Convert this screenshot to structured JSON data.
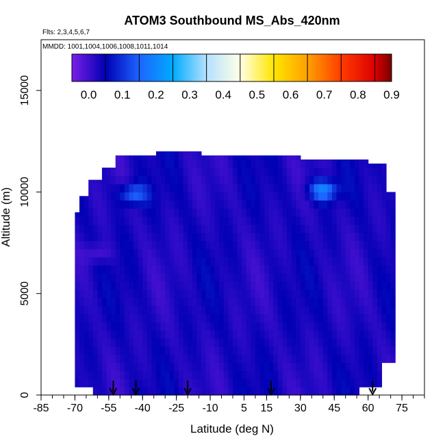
{
  "chart_data": {
    "type": "heatmap",
    "title": "ATOM3 Southbound MS_Abs_420nm",
    "flights_note": "Flts: 2,3,4,5,6,7",
    "dates_note": "MMDD: 1001,1004,1006,1008,1011,1014",
    "xlabel": "Latitude (deg N)",
    "ylabel": "Altitude (m)",
    "xlim": [
      -85,
      85
    ],
    "ylim": [
      0,
      17500
    ],
    "x_ticks": [
      -85,
      -70,
      -55,
      -40,
      -25,
      -10,
      5,
      15,
      30,
      45,
      60,
      75
    ],
    "x_tick_labels": [
      "-85",
      "-70",
      "-55",
      "-40",
      "-25",
      "-10",
      "5",
      "15",
      "30",
      "45",
      "60",
      "75"
    ],
    "y_ticks": [
      0,
      5000,
      10000,
      15000
    ],
    "y_tick_labels": [
      "0",
      "5000",
      "10000",
      "15000"
    ],
    "colorbar": {
      "range": [
        -0.05,
        0.9
      ],
      "ticks": [
        0.0,
        0.1,
        0.2,
        0.3,
        0.4,
        0.5,
        0.6,
        0.7,
        0.8,
        0.9
      ],
      "tick_labels": [
        "0.0",
        "0.1",
        "0.2",
        "0.3",
        "0.4",
        "0.5",
        "0.6",
        "0.7",
        "0.8",
        "0.9"
      ],
      "colors": [
        "#7a1ee6",
        "#0000b4",
        "#1e64ff",
        "#00aaff",
        "#b4e1ff",
        "#ffffe6",
        "#ffe600",
        "#ffa000",
        "#ff3c00",
        "#dc0000",
        "#780000"
      ],
      "color_stops": [
        -0.05,
        0.05,
        0.15,
        0.25,
        0.35,
        0.45,
        0.55,
        0.65,
        0.75,
        0.85,
        0.9
      ]
    },
    "arrows_latitude": [
      -53,
      -43,
      -20,
      17,
      62
    ],
    "data_extent": {
      "lat_min": -70,
      "lat_max": 72,
      "alt_max_approx": 12000,
      "typical_value": 0.03,
      "max_value_approx": 0.2,
      "enhanced_regions": [
        {
          "lat": -44,
          "alt": 9900,
          "value": 0.16
        },
        {
          "lat": 40,
          "alt": 10100,
          "value": 0.2
        },
        {
          "lat": -60,
          "alt": 7000,
          "value": -0.02
        }
      ]
    }
  }
}
